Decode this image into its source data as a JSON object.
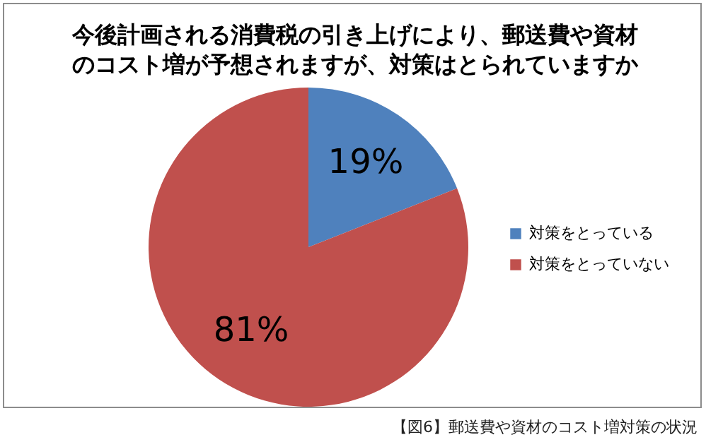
{
  "chart_data": {
    "type": "pie",
    "title": "今後計画される消費税の引き上げにより、郵送費や資材のコスト増が予想されますが、対策はとられていますか",
    "categories": [
      "対策をとっている",
      "対策をとっていない"
    ],
    "values": [
      19,
      81
    ],
    "colors": [
      "#4f81bd",
      "#c0504d"
    ],
    "value_labels": [
      "19%",
      "81%"
    ],
    "legend": "right",
    "annotations": [
      "【図6】郵送費や資材のコスト増対策の状況"
    ]
  }
}
